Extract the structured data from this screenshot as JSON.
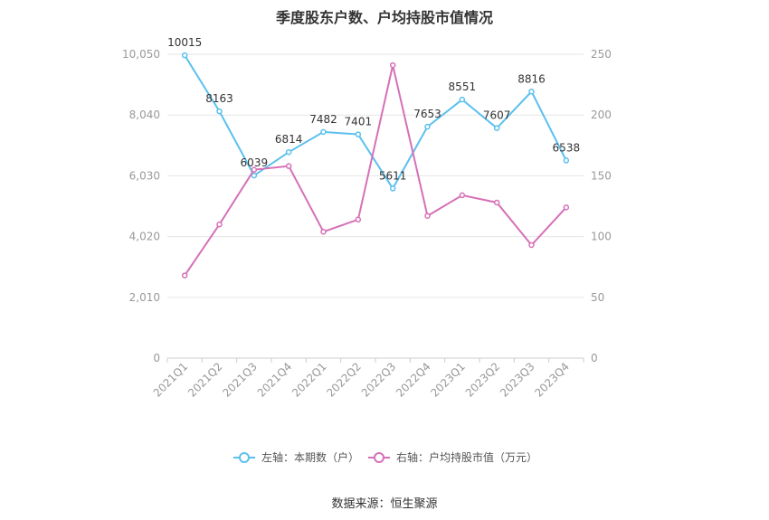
{
  "source": "数据来源：恒生聚源",
  "chart_data": {
    "type": "line",
    "title": "季度股东户数、户均持股市值情况",
    "categories": [
      "2021Q1",
      "2021Q2",
      "2021Q3",
      "2021Q4",
      "2022Q1",
      "2022Q2",
      "2022Q3",
      "2022Q4",
      "2023Q1",
      "2023Q2",
      "2023Q3",
      "2023Q4"
    ],
    "left_axis": {
      "min": 0,
      "max": 10050,
      "ticks": [
        0,
        2010,
        4020,
        6030,
        8040,
        10050
      ],
      "tick_labels": [
        "0",
        "2,010",
        "4,020",
        "6,030",
        "8,040",
        "10,050"
      ]
    },
    "right_axis": {
      "min": 0,
      "max": 250,
      "ticks": [
        0,
        50,
        100,
        150,
        200,
        250
      ],
      "tick_labels": [
        "0",
        "50",
        "100",
        "150",
        "200",
        "250"
      ]
    },
    "grid": true,
    "legend_position": "bottom",
    "series": [
      {
        "name": "左轴：本期数（户）",
        "axis": "left",
        "color": "#5bc0ee",
        "values": [
          10015,
          8163,
          6039,
          6814,
          7482,
          7401,
          5611,
          7653,
          8551,
          7607,
          8816,
          6538
        ],
        "labels": [
          "10015",
          "8163",
          "6039",
          "6814",
          "7482",
          "7401",
          "5611",
          "7653",
          "8551",
          "7607",
          "8816",
          "6538"
        ]
      },
      {
        "name": "右轴：户均持股市值（万元）",
        "axis": "right",
        "color": "#d670b7",
        "values": [
          68,
          110,
          155,
          158,
          104,
          114,
          241,
          117,
          134,
          128,
          93,
          124
        ]
      }
    ]
  }
}
